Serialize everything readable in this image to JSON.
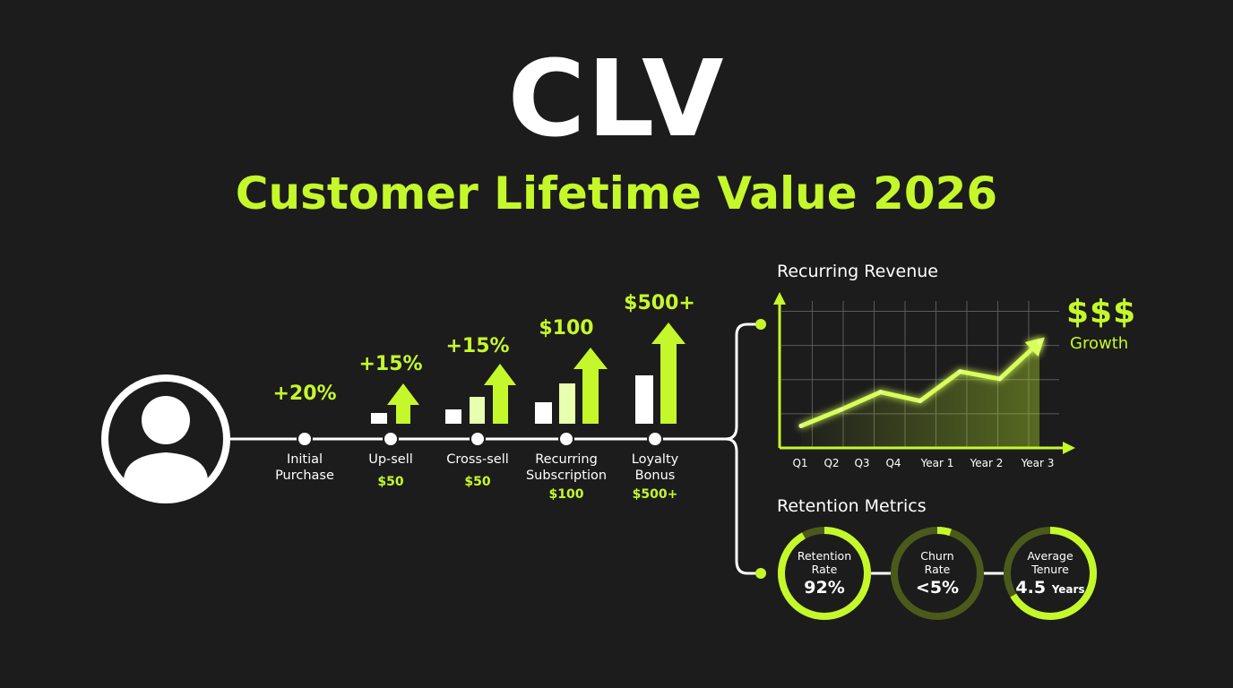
{
  "header": {
    "title": "CLV",
    "subtitle": "Customer Lifetime Value 2026"
  },
  "journey": {
    "steps": [
      {
        "label_line1": "Initial",
        "label_line2": "Purchase",
        "value": "",
        "growth": "+20%"
      },
      {
        "label_line1": "Up-sell",
        "label_line2": "",
        "value": "$50",
        "growth": "+15%"
      },
      {
        "label_line1": "Cross-sell",
        "label_line2": "",
        "value": "$50",
        "growth": "+15%"
      },
      {
        "label_line1": "Recurring",
        "label_line2": "Subscription",
        "value": "$100",
        "growth": "$100"
      },
      {
        "label_line1": "Loyalty",
        "label_line2": "Bonus",
        "value": "$500+",
        "growth": "$500+"
      }
    ]
  },
  "revenue_chart": {
    "title": "Recurring Revenue",
    "growth_symbol": "$$$",
    "growth_label": "Growth"
  },
  "retention": {
    "title": "Retention Metrics",
    "metrics": [
      {
        "label_line1": "Retention",
        "label_line2": "Rate",
        "value": "92%",
        "unit": ""
      },
      {
        "label_line1": "Churn",
        "label_line2": "Rate",
        "value": "<5%",
        "unit": ""
      },
      {
        "label_line1": "Average",
        "label_line2": "Tenure",
        "value": "4.5",
        "unit": "Years"
      }
    ]
  },
  "colors": {
    "accent": "#c5f82a",
    "background": "#1c1c1c",
    "white": "#ffffff",
    "dim_ring": "#4b5a1a"
  },
  "icons": {
    "customer": "user-avatar-icon",
    "growth_arrows": "arrow-up-icon"
  },
  "chart_data": {
    "type": "line",
    "title": "Recurring Revenue",
    "x": [
      "Q1",
      "Q2",
      "Q3",
      "Q4",
      "Year 1",
      "Year 2",
      "Year 3"
    ],
    "series": [
      {
        "values": [
          1.5,
          2.6,
          3.8,
          3.2,
          5.2,
          4.7,
          7.2
        ]
      }
    ],
    "ylim": [
      0,
      10
    ],
    "grid": true,
    "xlabel": "",
    "ylabel": ""
  }
}
